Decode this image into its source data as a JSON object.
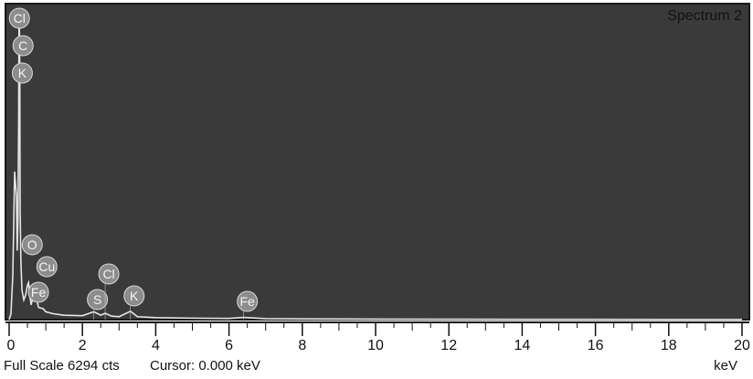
{
  "chart_data": {
    "type": "line",
    "spectrum_label": "Spectrum 2",
    "x_unit": "keV",
    "xlim": [
      0,
      20
    ],
    "x_ticks": [
      "0",
      "2",
      "4",
      "6",
      "8",
      "10",
      "12",
      "14",
      "16",
      "18",
      "20"
    ],
    "full_scale_text": "Full Scale 6294 cts",
    "cursor_text": "Cursor: 0.000 keV",
    "grid": false,
    "colors": {
      "plot_background": "#3a3a3a",
      "trace": "#e6e6e6",
      "peak_marker": "#8c8c8c"
    },
    "peak_labels": [
      {
        "element": "Cl",
        "energy": 0.18
      },
      {
        "element": "C",
        "energy": 0.28
      },
      {
        "element": "K",
        "energy": 0.26
      },
      {
        "element": "O",
        "energy": 0.53
      },
      {
        "element": "Cu",
        "energy": 0.93
      },
      {
        "element": "Fe",
        "energy": 0.7
      },
      {
        "element": "S",
        "energy": 2.31
      },
      {
        "element": "Cl",
        "energy": 2.62
      },
      {
        "element": "K",
        "energy": 3.31
      },
      {
        "element": "Fe",
        "energy": 6.4
      }
    ],
    "series": [
      {
        "x": [
          0.0,
          0.05,
          0.1,
          0.15,
          0.2,
          0.22,
          0.24,
          0.26,
          0.27,
          0.28,
          0.29,
          0.3,
          0.32,
          0.35,
          0.4,
          0.45,
          0.5,
          0.53,
          0.56,
          0.6,
          0.7,
          0.8,
          0.93,
          1.0,
          1.2,
          1.5,
          2.0,
          2.31,
          2.5,
          2.62,
          2.8,
          3.0,
          3.31,
          3.5,
          4.0,
          5.0,
          6.0,
          6.4,
          7.0,
          8.0,
          10.0,
          12.0,
          14.0,
          16.0,
          18.0,
          20.0
        ],
        "y": [
          0,
          120,
          900,
          3000,
          2500,
          1400,
          2000,
          4000,
          6294,
          6000,
          5000,
          2200,
          1200,
          600,
          400,
          500,
          700,
          750,
          500,
          300,
          600,
          250,
          220,
          160,
          120,
          90,
          80,
          160,
          90,
          130,
          70,
          60,
          170,
          60,
          40,
          30,
          25,
          45,
          20,
          15,
          10,
          8,
          6,
          5,
          4,
          3
        ]
      }
    ]
  }
}
